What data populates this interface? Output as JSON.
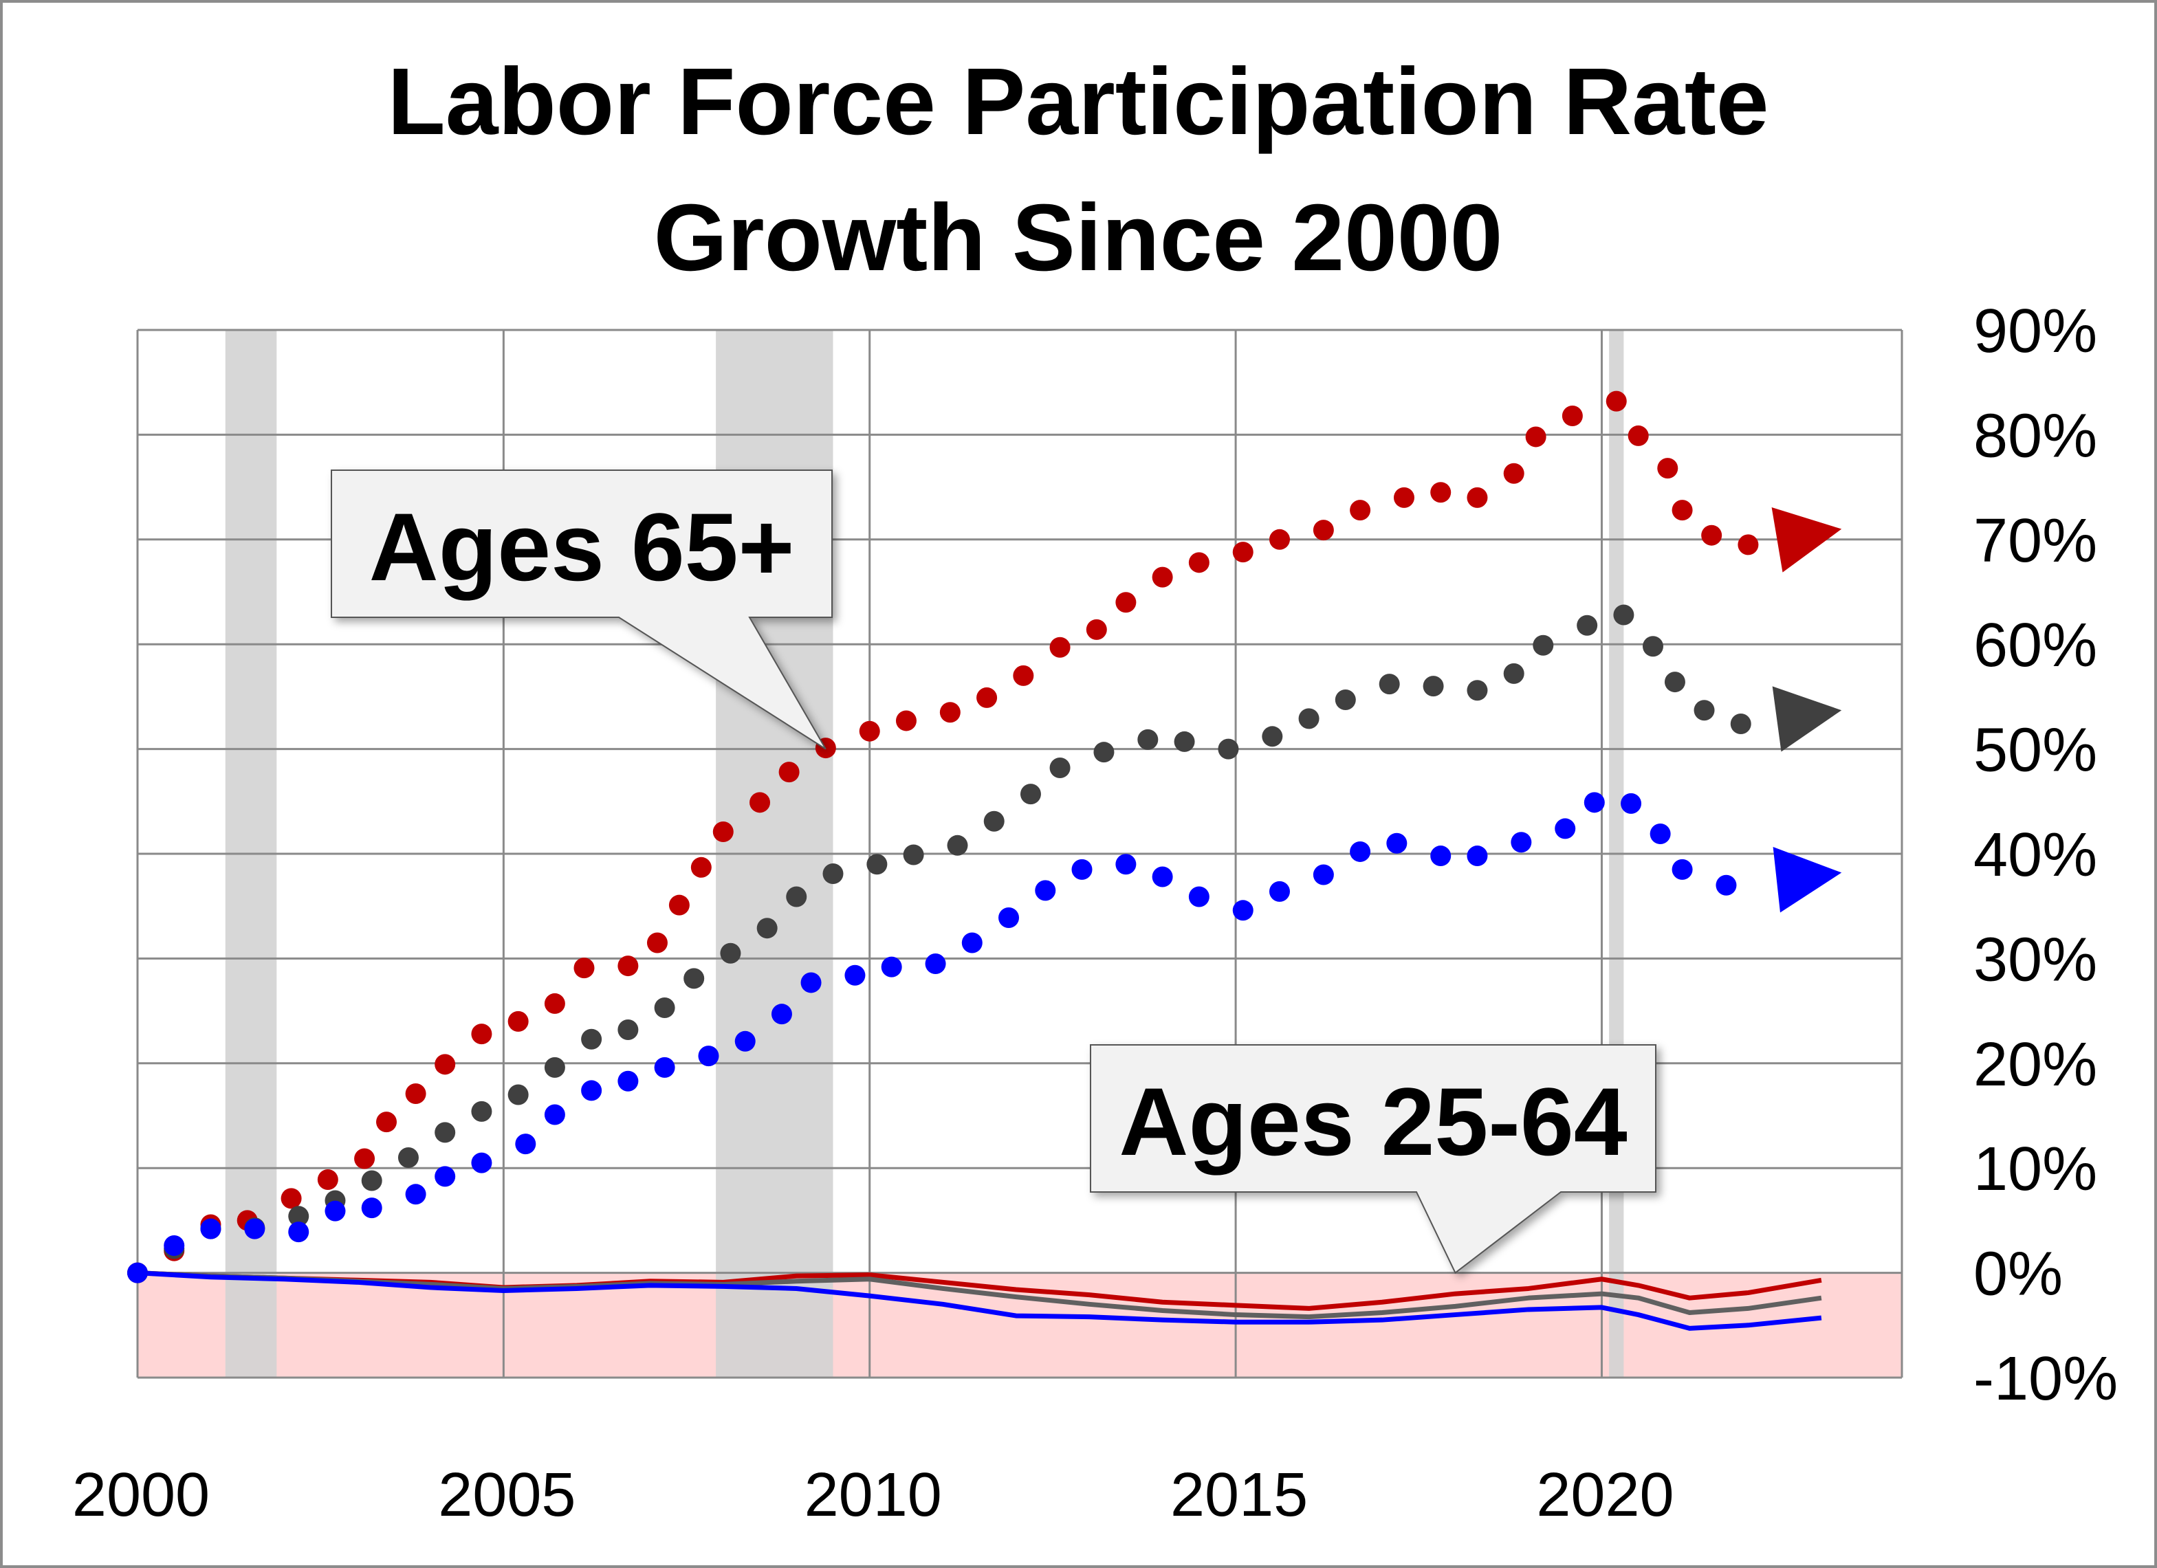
{
  "chart_data": {
    "type": "scatter",
    "title": [
      "Labor Force Participation Rate",
      "Growth Since 2000"
    ],
    "xlabel": "",
    "ylabel": "",
    "xlim": [
      2000,
      2024.1
    ],
    "ylim": [
      -10,
      90
    ],
    "x_ticks": [
      "2000",
      "2005",
      "2010",
      "2015",
      "2020"
    ],
    "x_tick_values": [
      2000,
      2005,
      2010,
      2015,
      2020
    ],
    "y_ticks": [
      "90%",
      "80%",
      "70%",
      "60%",
      "50%",
      "40%",
      "30%",
      "20%",
      "10%",
      "0%",
      "-10%"
    ],
    "y_tick_values": [
      90,
      80,
      70,
      60,
      50,
      40,
      30,
      20,
      10,
      0,
      -10
    ],
    "y_axis_side": "right",
    "grid": true,
    "negative_region_color": "#ffd6d6",
    "recession_shading": [
      [
        2001.2,
        2001.9
      ],
      [
        2007.9,
        2009.5
      ],
      [
        2020.1,
        2020.3
      ]
    ],
    "recession_color": "#d3d3d3",
    "annotations": [
      {
        "text": "Ages 65+",
        "points_to": [
          2009.4,
          50
        ]
      },
      {
        "text": "Ages 25-64",
        "points_to": [
          2018.0,
          0
        ]
      }
    ],
    "dotted_series": [
      {
        "color": "#c00000",
        "arrow_end": [
          2022.9,
          71
        ],
        "points": [
          [
            2000.0,
            0
          ],
          [
            2000.5,
            2.1
          ],
          [
            2001.0,
            4.6
          ],
          [
            2001.5,
            5.0
          ],
          [
            2002.1,
            7.1
          ],
          [
            2002.6,
            8.9
          ],
          [
            2003.1,
            10.9
          ],
          [
            2003.4,
            14.4
          ],
          [
            2003.8,
            17.1
          ],
          [
            2004.2,
            19.9
          ],
          [
            2004.7,
            22.8
          ],
          [
            2005.2,
            24.0
          ],
          [
            2005.7,
            25.7
          ],
          [
            2006.1,
            29.1
          ],
          [
            2006.7,
            29.3
          ],
          [
            2007.1,
            31.5
          ],
          [
            2007.4,
            35.1
          ],
          [
            2007.7,
            38.7
          ],
          [
            2008.0,
            42.1
          ],
          [
            2008.5,
            44.9
          ],
          [
            2008.9,
            47.8
          ],
          [
            2009.4,
            50.1
          ],
          [
            2010.0,
            51.7
          ],
          [
            2010.5,
            52.7
          ],
          [
            2011.1,
            53.5
          ],
          [
            2011.6,
            54.9
          ],
          [
            2012.1,
            57.0
          ],
          [
            2012.6,
            59.7
          ],
          [
            2013.1,
            61.4
          ],
          [
            2013.5,
            64.0
          ],
          [
            2014.0,
            66.4
          ],
          [
            2014.5,
            67.8
          ],
          [
            2015.1,
            68.8
          ],
          [
            2015.6,
            70.0
          ],
          [
            2016.2,
            70.9
          ],
          [
            2016.7,
            72.8
          ],
          [
            2017.3,
            74.0
          ],
          [
            2017.8,
            74.5
          ],
          [
            2018.3,
            74.0
          ],
          [
            2018.8,
            76.3
          ],
          [
            2019.1,
            79.8
          ],
          [
            2019.6,
            81.8
          ],
          [
            2020.2,
            83.2
          ],
          [
            2020.5,
            79.9
          ],
          [
            2020.9,
            76.8
          ],
          [
            2021.1,
            72.8
          ],
          [
            2021.5,
            70.4
          ],
          [
            2022.0,
            69.5
          ]
        ]
      },
      {
        "color": "#404040",
        "arrow_end": [
          2022.9,
          53.7
        ],
        "points": [
          [
            2000.0,
            0
          ],
          [
            2000.5,
            2.3
          ],
          [
            2001.0,
            4.2
          ],
          [
            2001.6,
            4.3
          ],
          [
            2002.2,
            5.4
          ],
          [
            2002.7,
            6.9
          ],
          [
            2003.2,
            8.8
          ],
          [
            2003.7,
            11.0
          ],
          [
            2004.2,
            13.4
          ],
          [
            2004.7,
            15.4
          ],
          [
            2005.2,
            17.0
          ],
          [
            2005.7,
            19.6
          ],
          [
            2006.2,
            22.3
          ],
          [
            2006.7,
            23.2
          ],
          [
            2007.2,
            25.3
          ],
          [
            2007.6,
            28.1
          ],
          [
            2008.1,
            30.5
          ],
          [
            2008.6,
            32.9
          ],
          [
            2009.0,
            35.9
          ],
          [
            2009.5,
            38.1
          ],
          [
            2010.1,
            39.0
          ],
          [
            2010.6,
            39.9
          ],
          [
            2011.2,
            40.8
          ],
          [
            2011.7,
            43.1
          ],
          [
            2012.2,
            45.7
          ],
          [
            2012.6,
            48.2
          ],
          [
            2013.2,
            49.7
          ],
          [
            2013.8,
            50.9
          ],
          [
            2014.3,
            50.7
          ],
          [
            2014.9,
            50.0
          ],
          [
            2015.5,
            51.2
          ],
          [
            2016.0,
            52.9
          ],
          [
            2016.5,
            54.7
          ],
          [
            2017.1,
            56.2
          ],
          [
            2017.7,
            56.0
          ],
          [
            2018.3,
            55.6
          ],
          [
            2018.8,
            57.2
          ],
          [
            2019.2,
            59.9
          ],
          [
            2019.8,
            61.8
          ],
          [
            2020.3,
            62.8
          ],
          [
            2020.7,
            59.8
          ],
          [
            2021.0,
            56.4
          ],
          [
            2021.4,
            53.7
          ],
          [
            2021.9,
            52.4
          ]
        ]
      },
      {
        "color": "#0000ff",
        "arrow_end": [
          2022.9,
          38.2
        ],
        "points": [
          [
            2000.0,
            0
          ],
          [
            2000.5,
            2.6
          ],
          [
            2001.0,
            4.2
          ],
          [
            2001.6,
            4.2
          ],
          [
            2002.2,
            3.9
          ],
          [
            2002.7,
            5.9
          ],
          [
            2003.2,
            6.2
          ],
          [
            2003.8,
            7.5
          ],
          [
            2004.2,
            9.2
          ],
          [
            2004.7,
            10.5
          ],
          [
            2005.3,
            12.3
          ],
          [
            2005.7,
            15.1
          ],
          [
            2006.2,
            17.4
          ],
          [
            2006.7,
            18.3
          ],
          [
            2007.2,
            19.6
          ],
          [
            2007.8,
            20.7
          ],
          [
            2008.3,
            22.1
          ],
          [
            2008.8,
            24.7
          ],
          [
            2009.2,
            27.7
          ],
          [
            2009.8,
            28.4
          ],
          [
            2010.3,
            29.2
          ],
          [
            2010.9,
            29.5
          ],
          [
            2011.4,
            31.5
          ],
          [
            2011.9,
            33.9
          ],
          [
            2012.4,
            36.5
          ],
          [
            2012.9,
            38.5
          ],
          [
            2013.5,
            39.0
          ],
          [
            2014.0,
            37.8
          ],
          [
            2014.5,
            35.9
          ],
          [
            2015.1,
            34.6
          ],
          [
            2015.6,
            36.4
          ],
          [
            2016.2,
            38.0
          ],
          [
            2016.7,
            40.2
          ],
          [
            2017.2,
            41.0
          ],
          [
            2017.8,
            39.8
          ],
          [
            2018.3,
            39.8
          ],
          [
            2018.9,
            41.1
          ],
          [
            2019.5,
            42.4
          ],
          [
            2019.9,
            44.9
          ],
          [
            2020.4,
            44.8
          ],
          [
            2020.8,
            41.9
          ],
          [
            2021.1,
            38.5
          ],
          [
            2021.7,
            37.0
          ]
        ]
      }
    ],
    "line_series": [
      {
        "color": "#c00000",
        "points": [
          [
            2000,
            0
          ],
          [
            2001,
            -0.3
          ],
          [
            2002,
            -0.5
          ],
          [
            2003,
            -0.7
          ],
          [
            2004,
            -0.9
          ],
          [
            2005,
            -1.4
          ],
          [
            2006,
            -1.2
          ],
          [
            2007,
            -0.8
          ],
          [
            2008,
            -0.9
          ],
          [
            2009,
            -0.3
          ],
          [
            2010,
            -0.2
          ],
          [
            2011,
            -0.9
          ],
          [
            2012,
            -1.6
          ],
          [
            2013,
            -2.1
          ],
          [
            2014,
            -2.8
          ],
          [
            2015,
            -3.1
          ],
          [
            2016,
            -3.4
          ],
          [
            2017,
            -2.8
          ],
          [
            2018,
            -2.0
          ],
          [
            2019,
            -1.5
          ],
          [
            2020,
            -0.6
          ],
          [
            2020.5,
            -1.2
          ],
          [
            2021.2,
            -2.4
          ],
          [
            2022,
            -1.9
          ],
          [
            2023,
            -0.7
          ]
        ]
      },
      {
        "color": "#606060",
        "points": [
          [
            2000,
            0
          ],
          [
            2001,
            -0.3
          ],
          [
            2002,
            -0.5
          ],
          [
            2003,
            -0.8
          ],
          [
            2004,
            -1.1
          ],
          [
            2005,
            -1.5
          ],
          [
            2006,
            -1.3
          ],
          [
            2007,
            -1.0
          ],
          [
            2008,
            -1.1
          ],
          [
            2009,
            -0.8
          ],
          [
            2010,
            -0.6
          ],
          [
            2011,
            -1.5
          ],
          [
            2012,
            -2.3
          ],
          [
            2013,
            -3.0
          ],
          [
            2014,
            -3.6
          ],
          [
            2015,
            -4.0
          ],
          [
            2016,
            -4.2
          ],
          [
            2017,
            -3.8
          ],
          [
            2018,
            -3.2
          ],
          [
            2019,
            -2.4
          ],
          [
            2020,
            -2.0
          ],
          [
            2020.5,
            -2.4
          ],
          [
            2021.2,
            -3.8
          ],
          [
            2022,
            -3.4
          ],
          [
            2023,
            -2.4
          ]
        ]
      },
      {
        "color": "#0000ff",
        "points": [
          [
            2000,
            0
          ],
          [
            2001,
            -0.4
          ],
          [
            2002,
            -0.6
          ],
          [
            2003,
            -0.9
          ],
          [
            2004,
            -1.4
          ],
          [
            2005,
            -1.7
          ],
          [
            2006,
            -1.5
          ],
          [
            2007,
            -1.2
          ],
          [
            2008,
            -1.3
          ],
          [
            2009,
            -1.5
          ],
          [
            2010,
            -2.2
          ],
          [
            2011,
            -3.0
          ],
          [
            2012,
            -4.1
          ],
          [
            2013,
            -4.2
          ],
          [
            2014,
            -4.5
          ],
          [
            2015,
            -4.7
          ],
          [
            2016,
            -4.7
          ],
          [
            2017,
            -4.5
          ],
          [
            2018,
            -4.0
          ],
          [
            2019,
            -3.5
          ],
          [
            2020,
            -3.3
          ],
          [
            2020.5,
            -4.0
          ],
          [
            2021.2,
            -5.3
          ],
          [
            2022,
            -5.0
          ],
          [
            2023,
            -4.3
          ]
        ]
      }
    ]
  }
}
